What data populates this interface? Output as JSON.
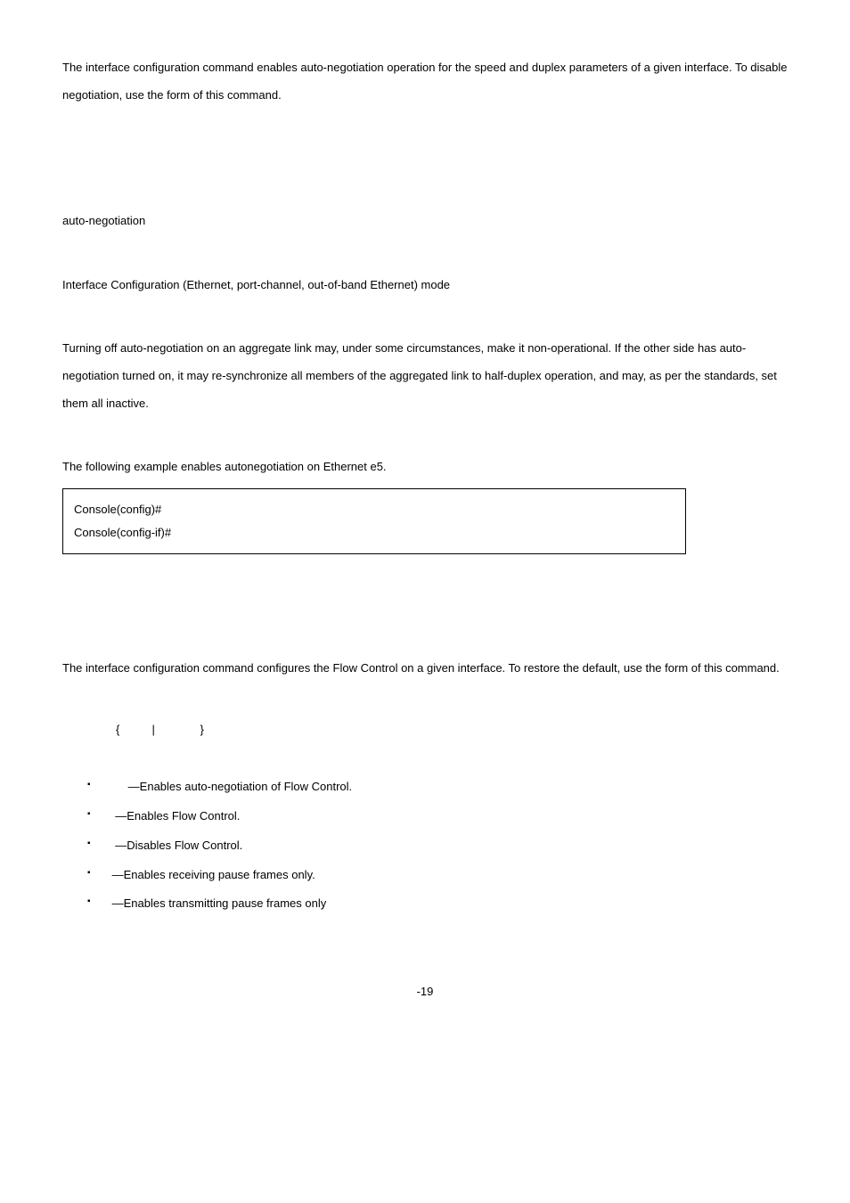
{
  "para1_a": "The ",
  "para1_b": " interface configuration command enables auto-negotiation operation for the speed and duplex parameters of a given interface. To disable negotiation, use the ",
  "para1_c": " form of this command.",
  "syntax1": "auto-negotiation",
  "mode1": "Interface Configuration (Ethernet, port-channel, out-of-band Ethernet) mode",
  "guide1": "Turning off auto-negotiation on an aggregate link may, under some circumstances, make it non-operational. If the other side has auto-negotiation turned on, it may re-synchronize all members of the aggregated link to half-duplex operation, and may, as per the standards, set them all inactive.",
  "example1_intro": "The following example enables autonegotiation on Ethernet e5.",
  "console1": "Console(config)# ",
  "console2": "Console(config-if)# ",
  "para2_a": "The ",
  "para2_b": " interface configuration command configures the Flow Control on a given interface. To restore the default, use the ",
  "para2_c": " form of this command.",
  "syntax2_open": "{",
  "syntax2_pipe": "|",
  "syntax2_close": "}",
  "bullets": [
    "—Enables auto-negotiation of Flow Control.",
    "—Enables Flow Control.",
    "—Disables Flow Control.",
    "—Enables receiving pause frames only.",
    "—Enables transmitting pause frames only"
  ],
  "footer": "-19"
}
